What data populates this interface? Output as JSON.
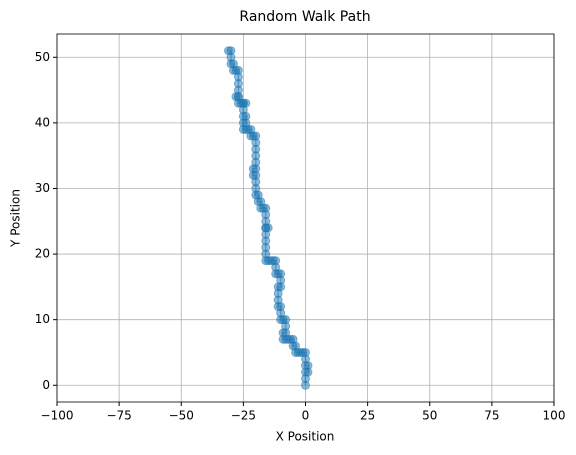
{
  "chart_data": {
    "type": "line-scatter",
    "title": "Random Walk Path",
    "x_label": "X Position",
    "y_label": "Y Position",
    "color": "#1f77b4",
    "grid": true,
    "xlim": [
      -100,
      100
    ],
    "ylim": [
      -2.55,
      53.55
    ],
    "xticks": [
      {
        "value": -100,
        "label": "−100"
      },
      {
        "value": -75,
        "label": "−75"
      },
      {
        "value": -50,
        "label": "−50"
      },
      {
        "value": -25,
        "label": "−25"
      },
      0,
      25,
      50,
      75,
      100
    ],
    "yticks": [
      0,
      10,
      20,
      30,
      40,
      50
    ],
    "x": [
      0,
      0,
      0,
      1,
      1,
      0,
      0,
      0,
      -1,
      -2,
      -3,
      -4,
      -4,
      -5,
      -5,
      -6,
      -7,
      -8,
      -9,
      -9,
      -8,
      -8,
      -8,
      -9,
      -10,
      -10,
      -10,
      -11,
      -11,
      -11,
      -11,
      -10,
      -10,
      -10,
      -11,
      -12,
      -12,
      -12,
      -13,
      -14,
      -15,
      -16,
      -16,
      -16,
      -16,
      -16,
      -16,
      -15,
      -16,
      -16,
      -16,
      -16,
      -17,
      -18,
      -18,
      -19,
      -19,
      -20,
      -20,
      -20,
      -20,
      -21,
      -21,
      -20,
      -20,
      -20,
      -20,
      -20,
      -20,
      -21,
      -22,
      -22,
      -23,
      -24,
      -25,
      -25,
      -24,
      -24,
      -25,
      -25,
      -25,
      -24,
      -25,
      -26,
      -27,
      -27,
      -28,
      -27,
      -27,
      -27,
      -27,
      -27,
      -28,
      -29,
      -29,
      -30,
      -30,
      -30,
      -31
    ],
    "y": [
      0,
      1,
      2,
      2,
      3,
      3,
      4,
      5,
      5,
      5,
      5,
      5,
      6,
      6,
      7,
      7,
      7,
      7,
      7,
      8,
      8,
      9,
      10,
      10,
      10,
      11,
      12,
      12,
      13,
      14,
      15,
      15,
      16,
      17,
      17,
      17,
      18,
      19,
      19,
      19,
      19,
      19,
      20,
      21,
      22,
      23,
      24,
      24,
      24,
      25,
      26,
      27,
      27,
      27,
      28,
      28,
      29,
      29,
      30,
      31,
      32,
      32,
      33,
      33,
      34,
      35,
      36,
      37,
      38,
      38,
      38,
      39,
      39,
      39,
      39,
      40,
      40,
      41,
      41,
      42,
      43,
      43,
      43,
      43,
      43,
      44,
      44,
      44,
      45,
      46,
      47,
      48,
      48,
      48,
      49,
      49,
      50,
      51,
      51
    ]
  }
}
